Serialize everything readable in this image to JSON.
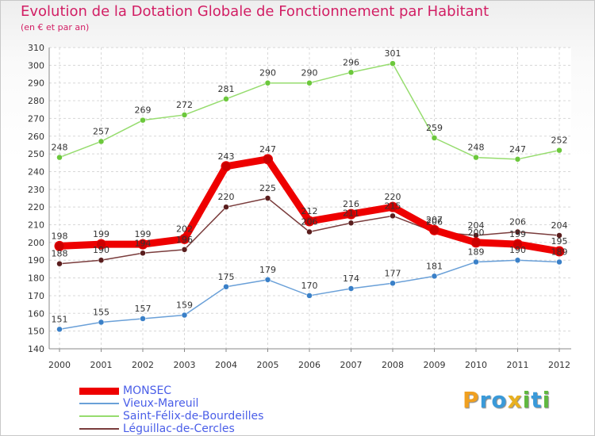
{
  "header": {
    "title": "Evolution de la Dotation Globale de Fonctionnement par Habitant",
    "subtitle": "(en € et par an)"
  },
  "logo": {
    "letters": [
      "P",
      "r",
      "o",
      "x",
      "i",
      "t",
      "i"
    ]
  },
  "chart_data": {
    "type": "line",
    "title": "Evolution de la Dotation Globale de Fonctionnement par Habitant",
    "subtitle": "(en € et par an)",
    "xlabel": "",
    "ylabel": "",
    "categories": [
      "2000",
      "2001",
      "2002",
      "2003",
      "2004",
      "2005",
      "2006",
      "2007",
      "2008",
      "2009",
      "2010",
      "2011",
      "2012"
    ],
    "yticks": [
      "140",
      "150",
      "160",
      "170",
      "180",
      "190",
      "200",
      "210",
      "220",
      "230",
      "240",
      "250",
      "260",
      "270",
      "280",
      "290",
      "300",
      "310"
    ],
    "ylim": [
      140,
      310
    ],
    "grid": true,
    "legend_position": "bottom-left",
    "series": [
      {
        "name": "MONSEC",
        "color": "#ee0000",
        "point_color": "#cc0000",
        "values": [
          198,
          199,
          199,
          202,
          243,
          247,
          212,
          216,
          220,
          207,
          200,
          199,
          195
        ],
        "labels": [
          "198",
          "199",
          "199",
          "202",
          "243",
          "247",
          "212",
          "216",
          "220",
          "207",
          "200",
          "199",
          "195"
        ],
        "emphasis": true
      },
      {
        "name": "Vieux-Mareuil",
        "color": "#6aa0d8",
        "point_color": "#3a80c8",
        "values": [
          151,
          155,
          157,
          159,
          175,
          179,
          170,
          174,
          177,
          181,
          189,
          190,
          189
        ],
        "labels": [
          "151",
          "155",
          "157",
          "159",
          "175",
          "179",
          "170",
          "174",
          "177",
          "181",
          "189",
          "190",
          "189"
        ]
      },
      {
        "name": "Saint-Félix-de-Bourdeilles",
        "color": "#96dc6e",
        "point_color": "#6cc83c",
        "values": [
          248,
          257,
          269,
          272,
          281,
          290,
          290,
          296,
          301,
          259,
          248,
          247,
          252
        ],
        "labels": [
          "248",
          "257",
          "269",
          "272",
          "281",
          "290",
          "290",
          "296",
          "301",
          "259",
          "248",
          "247",
          "252"
        ]
      },
      {
        "name": "Léguillac-de-Cercles",
        "color": "#7a3c3c",
        "point_color": "#5a1e1e",
        "values": [
          188,
          190,
          194,
          196,
          220,
          225,
          206,
          211,
          215,
          206,
          204,
          206,
          204
        ],
        "labels": [
          "188",
          "190",
          "194",
          "196",
          "220",
          "225",
          "206",
          "211",
          "215",
          "206",
          "204",
          "206",
          "204"
        ]
      }
    ]
  }
}
